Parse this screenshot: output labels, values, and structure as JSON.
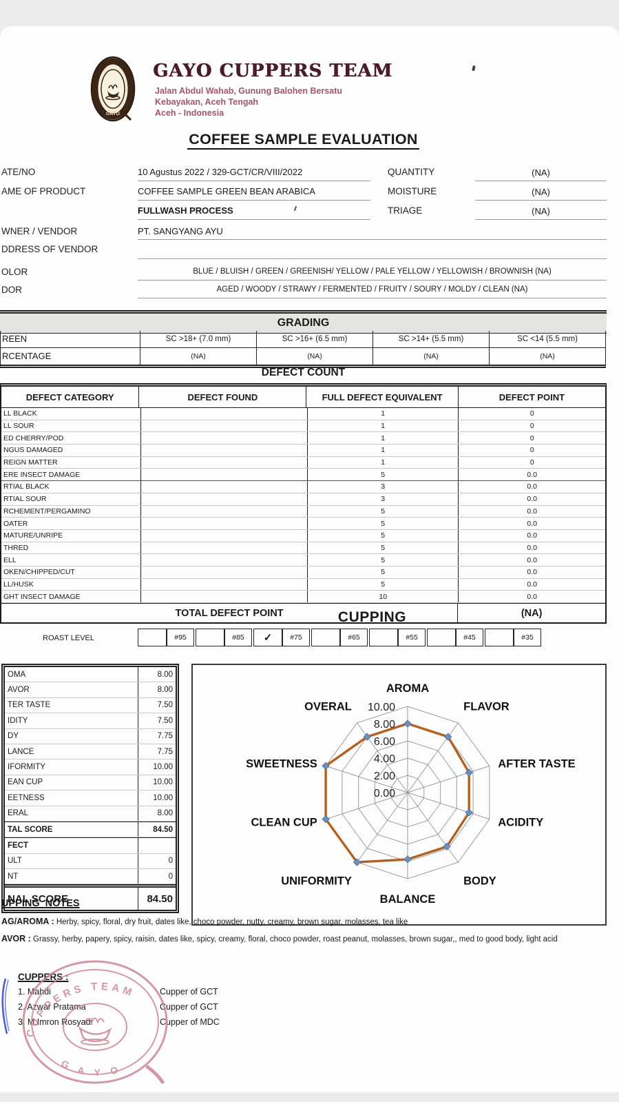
{
  "header": {
    "org_name": "GAYO CUPPERS TEAM",
    "address_line1": "Jalan Abdul Wahab, Gunung Balohen Bersatu",
    "address_line2": "Kebayakan, Aceh Tengah",
    "address_line3": "Aceh - Indonesia",
    "title": "COFFEE SAMPLE EVALUATION"
  },
  "info": {
    "date_label": "ATE/NO",
    "date_value": "10 Agustus 2022 / 329-GCT/CR/VIII/2022",
    "product_label": "AME OF PRODUCT",
    "product_value": "COFFEE SAMPLE GREEN BEAN ARABICA",
    "process_value": "FULLWASH PROCESS",
    "owner_label": "WNER / VENDOR",
    "owner_value": "PT. SANGYANG AYU",
    "address_label": "DDRESS OF VENDOR",
    "quantity_label": "QUANTITY",
    "quantity_value": "(NA)",
    "moisture_label": "MOISTURE",
    "moisture_value": "(NA)",
    "triage_label": "TRIAGE",
    "triage_value": "(NA)",
    "color_label": "OLOR",
    "color_value": "BLUE / BLUISH / GREEN / GREENISH/ YELLOW / PALE YELLOW / YELLOWISH / BROWNISH (NA)",
    "odor_label": "DOR",
    "odor_value": "AGED / WOODY / STRAWY / FERMENTED / FRUITY / SOURY / MOLDY / CLEAN (NA)"
  },
  "grading": {
    "title": "GRADING",
    "screen_label": "REEN",
    "percentage_label": "RCENTAGE",
    "columns": [
      "SC >18+ (7.0 mm)",
      "SC >16+ (6.5 mm)",
      "SC >14+ (5.5 mm)",
      "SC <14 (5.5 mm)"
    ],
    "percentages": [
      "(NA)",
      "(NA)",
      "(NA)",
      "(NA)"
    ]
  },
  "defects": {
    "title": "DEFECT COUNT",
    "headers": [
      "DEFECT CATEGORY",
      "DEFECT FOUND",
      "FULL DEFECT EQUIVALENT",
      "DEFECT POINT"
    ],
    "rows": [
      {
        "category": "LL BLACK",
        "found": "",
        "equivalent": "1",
        "point": "0"
      },
      {
        "category": "LL SOUR",
        "found": "",
        "equivalent": "1",
        "point": "0"
      },
      {
        "category": "ED CHERRY/POD",
        "found": "",
        "equivalent": "1",
        "point": "0"
      },
      {
        "category": "NGUS DAMAGED",
        "found": "",
        "equivalent": "1",
        "point": "0"
      },
      {
        "category": "REIGN MATTER",
        "found": "",
        "equivalent": "1",
        "point": "0"
      },
      {
        "category": "ERE INSECT DAMAGE",
        "found": "",
        "equivalent": "5",
        "point": "0.0"
      },
      {
        "category": "RTIAL BLACK",
        "found": "",
        "equivalent": "3",
        "point": "0.0"
      },
      {
        "category": "RTIAL SOUR",
        "found": "",
        "equivalent": "3",
        "point": "0.0"
      },
      {
        "category": "RCHEMENT/PERGAMINO",
        "found": "",
        "equivalent": "5",
        "point": "0.0"
      },
      {
        "category": "OATER",
        "found": "",
        "equivalent": "5",
        "point": "0.0"
      },
      {
        "category": "MATURE/UNRIPE",
        "found": "",
        "equivalent": "5",
        "point": "0.0"
      },
      {
        "category": "THRED",
        "found": "",
        "equivalent": "5",
        "point": "0.0"
      },
      {
        "category": "ELL",
        "found": "",
        "equivalent": "5",
        "point": "0.0"
      },
      {
        "category": "OKEN/CHIPPED/CUT",
        "found": "",
        "equivalent": "5",
        "point": "0.0"
      },
      {
        "category": "LL/HUSK",
        "found": "",
        "equivalent": "5",
        "point": "0.0"
      },
      {
        "category": "GHT INSECT DAMAGE",
        "found": "",
        "equivalent": "10",
        "point": "0.0"
      }
    ],
    "total_label": "TOTAL DEFECT POINT",
    "total_value": "(NA)"
  },
  "cupping": {
    "title": "CUPPING",
    "roast_label": "ROAST LEVEL",
    "roast_cells": [
      "",
      "#95",
      "",
      "#85",
      "✓",
      "#75",
      "",
      "#65",
      "",
      "#55",
      "",
      "#45",
      "",
      "#35"
    ],
    "scores": [
      {
        "label": "OMA",
        "value": "8.00"
      },
      {
        "label": "AVOR",
        "value": "8.00"
      },
      {
        "label": "TER TASTE",
        "value": "7.50"
      },
      {
        "label": "IDITY",
        "value": "7.50"
      },
      {
        "label": "DY",
        "value": "7.75"
      },
      {
        "label": "LANCE",
        "value": "7.75"
      },
      {
        "label": "IFORMITY",
        "value": "10.00"
      },
      {
        "label": "EAN CUP",
        "value": "10.00"
      },
      {
        "label": "EETNESS",
        "value": "10.00"
      },
      {
        "label": "ERAL",
        "value": "8.00"
      }
    ],
    "total_label": "TAL SCORE",
    "total_value": "84.50",
    "defect_label": "FECT",
    "fault_label": "ULT",
    "fault_value": "0",
    "taint_label": "NT",
    "taint_value": "0",
    "final_label": "NAL SCORE",
    "final_value": "84.50"
  },
  "chart_data": {
    "type": "radar",
    "categories": [
      "AROMA",
      "FLAVOR",
      "AFTER TASTE",
      "ACIDITY",
      "BODY",
      "BALANCE",
      "UNIFORMITY",
      "CLEAN CUP",
      "SWEETNESS",
      "OVERAL"
    ],
    "values": [
      8.0,
      8.0,
      7.5,
      7.5,
      7.75,
      7.75,
      10.0,
      10.0,
      10.0,
      8.0
    ],
    "max": 10,
    "rings": [
      2,
      4,
      6,
      8,
      10
    ],
    "ring_labels": [
      "10.00",
      "8.00",
      "6.00",
      "4.00",
      "2.00",
      "0.00"
    ],
    "grid": true,
    "legend": "none",
    "line_color": "#b2601f",
    "marker_color": "#6d8fbc",
    "grid_color": "#9c9c9c"
  },
  "notes": {
    "title": "UPPING  NOTES",
    "aroma_label": "AG/AROMA :",
    "aroma_text": "Herby, spicy, floral, dry fruit, dates like, choco powder, nutty, creamy, brown sugar, molasses, tea like",
    "flavor_label": "AVOR :",
    "flavor_text": "Grassy, herby, papery, spicy, raisin, dates like, spicy, creamy, floral, choco powder, roast peanut, molasses, brown sugar,, med to good body, light acid"
  },
  "cuppers": {
    "title": "CUPPERS :",
    "list": [
      {
        "name": "1. Mahdi",
        "role": "Cupper of GCT"
      },
      {
        "name": "2. Azwar Pratama",
        "role": "Cupper of GCT"
      },
      {
        "name": "3. M.Imron Rosyadi",
        "role": "Cupper of MDC"
      }
    ],
    "stamp_top": "CUPPERS TEAM",
    "stamp_bottom": "G A Y O"
  },
  "colors": {
    "brand_maroon": "#4a1b28",
    "address_pink": "#a4566b",
    "stamp_pink": "#c9808f",
    "pen_blue": "#4a5fd0"
  }
}
